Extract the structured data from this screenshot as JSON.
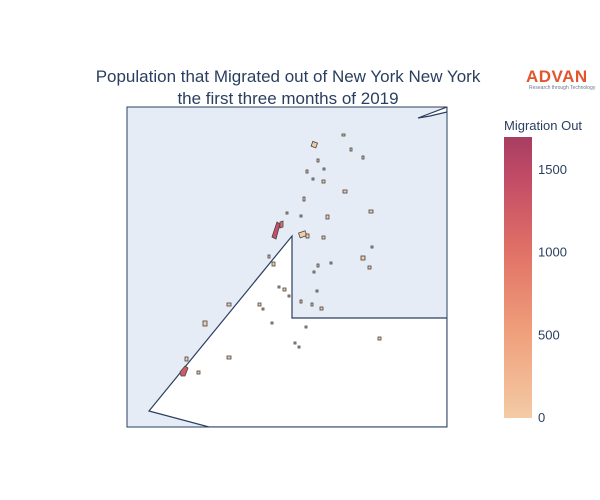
{
  "title_line1": "Population that Migrated out of New York New York",
  "title_line2": "the first three months of 2019",
  "logo": {
    "name": "ADVAN",
    "tagline": "Research through Technology"
  },
  "colorbar": {
    "title": "Migration Out",
    "min": 0,
    "max": 1700,
    "ticks": [
      {
        "value": 0,
        "label": "0"
      },
      {
        "value": 500,
        "label": "500"
      },
      {
        "value": 1000,
        "label": "1000"
      },
      {
        "value": 1500,
        "label": "1500"
      }
    ],
    "colors": [
      "#f3cba5",
      "#f0a07c",
      "#e07066",
      "#c24c66",
      "#a83e62"
    ]
  },
  "map": {
    "ocean_color": "#e5ecf6",
    "land_color": "#ffffff",
    "border_color": "#2a3f5f",
    "region_stroke": "#444444"
  }
}
